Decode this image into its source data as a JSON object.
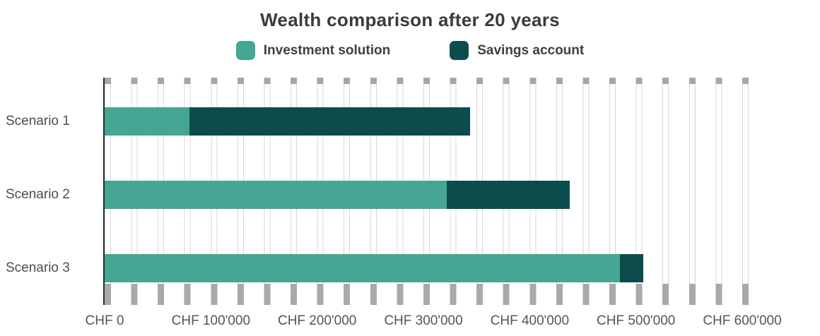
{
  "page": {
    "background": "#ffffff"
  },
  "chart": {
    "title": "Wealth comparison after 20 years",
    "legend": [
      {
        "label": "Investment solution",
        "color": "#45a693"
      },
      {
        "label": "Savings account",
        "color": "#0d4c4c"
      }
    ]
  },
  "chart_data": {
    "type": "bar",
    "orientation": "horizontal",
    "stacked": true,
    "title": "Wealth comparison after 20 years",
    "categories": [
      "Scenario 1",
      "Scenario 2",
      "Scenario 3"
    ],
    "series": [
      {
        "name": "Investment solution",
        "color": "#45a693",
        "values": [
          80000,
          322000,
          485000
        ]
      },
      {
        "name": "Savings account",
        "color": "#0d4c4c",
        "values": [
          264000,
          116000,
          22000
        ]
      }
    ],
    "totals": [
      344000,
      438000,
      507000
    ],
    "xlabel": "",
    "ylabel": "",
    "xlim": [
      0,
      600000
    ],
    "x_tick_step": 100000,
    "x_tick_labels": [
      "CHF 0",
      "CHF 100'000",
      "CHF 200'000",
      "CHF 300'000",
      "CHF 400'000",
      "CHF 500'000",
      "CHF 600'000"
    ],
    "minor_grid_step": 25000,
    "grid": "vertical-minor-stripes",
    "legend_position": "top-center",
    "axis_text_color": "#555555",
    "title_text_color": "#3b3b3b"
  }
}
